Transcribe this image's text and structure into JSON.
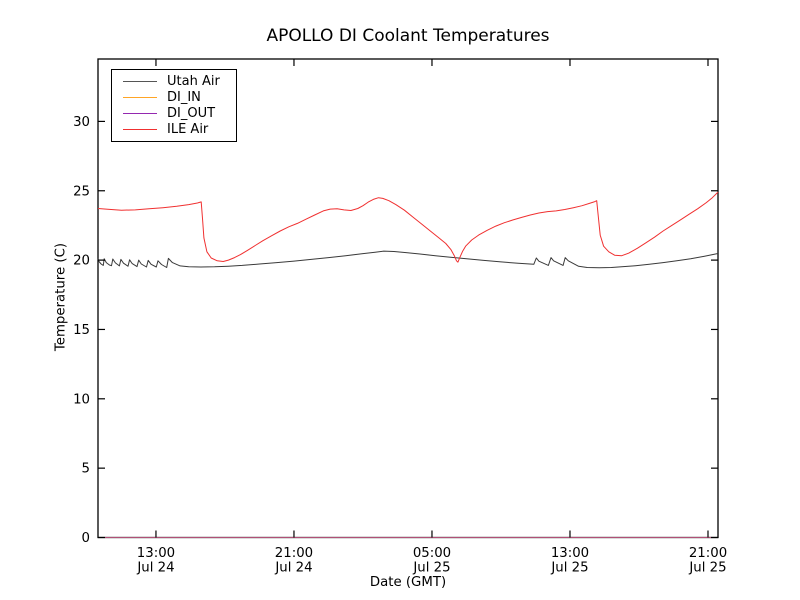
{
  "title": "APOLLO DI Coolant Temperatures",
  "xlabel": "Date (GMT)",
  "ylabel": "Temperature (C)",
  "legend": {
    "items": [
      {
        "label": "Utah Air",
        "color": "#555555"
      },
      {
        "label": "DI_IN",
        "color": "#ffa526"
      },
      {
        "label": "DI_OUT",
        "color": "#9428b0"
      },
      {
        "label": "ILE Air",
        "color": "#f03030"
      }
    ]
  },
  "axes": {
    "y_ticks": [
      0,
      5,
      10,
      15,
      20,
      25,
      30
    ],
    "x_ticks": [
      {
        "hour": 13,
        "time": "13:00",
        "date": "Jul 24"
      },
      {
        "hour": 21,
        "time": "21:00",
        "date": "Jul 24"
      },
      {
        "hour": 29,
        "time": "05:00",
        "date": "Jul 25"
      },
      {
        "hour": 37,
        "time": "13:00",
        "date": "Jul 25"
      },
      {
        "hour": 45,
        "time": "21:00",
        "date": "Jul 25"
      }
    ],
    "ylim": [
      0,
      34.5
    ],
    "xlim_hours": [
      9.64,
      45.58
    ],
    "grid": false,
    "legend_position": "upper left",
    "x_unit": "hours since Jul 24 00:00 GMT"
  },
  "chart_data": {
    "type": "line",
    "title": "APOLLO DI Coolant Temperatures",
    "xlabel": "Date (GMT)",
    "ylabel": "Temperature (C)",
    "series": [
      {
        "name": "Utah Air",
        "color": "#3a3a3a",
        "opacity": 1,
        "points": [
          [
            9.64,
            20.1
          ],
          [
            9.7,
            19.9
          ],
          [
            9.82,
            19.72
          ],
          [
            9.95,
            19.62
          ],
          [
            10.0,
            20.1
          ],
          [
            10.12,
            19.82
          ],
          [
            10.3,
            19.65
          ],
          [
            10.42,
            19.6
          ],
          [
            10.5,
            20.08
          ],
          [
            10.65,
            19.8
          ],
          [
            10.88,
            19.58
          ],
          [
            10.97,
            20.05
          ],
          [
            11.12,
            19.78
          ],
          [
            11.38,
            19.56
          ],
          [
            11.47,
            20.02
          ],
          [
            11.62,
            19.75
          ],
          [
            11.9,
            19.53
          ],
          [
            12.0,
            20.0
          ],
          [
            12.15,
            19.72
          ],
          [
            12.45,
            19.5
          ],
          [
            12.55,
            19.98
          ],
          [
            12.72,
            19.7
          ],
          [
            13.02,
            19.5
          ],
          [
            13.12,
            19.95
          ],
          [
            13.32,
            19.68
          ],
          [
            13.62,
            19.47
          ],
          [
            13.72,
            20.12
          ],
          [
            13.95,
            19.82
          ],
          [
            14.4,
            19.58
          ],
          [
            14.9,
            19.52
          ],
          [
            15.6,
            19.5
          ],
          [
            16.4,
            19.52
          ],
          [
            17.2,
            19.56
          ],
          [
            18.0,
            19.62
          ],
          [
            19.0,
            19.72
          ],
          [
            20.0,
            19.82
          ],
          [
            21.0,
            19.93
          ],
          [
            22.0,
            20.05
          ],
          [
            23.0,
            20.18
          ],
          [
            24.0,
            20.32
          ],
          [
            25.0,
            20.47
          ],
          [
            25.7,
            20.57
          ],
          [
            26.2,
            20.65
          ],
          [
            26.8,
            20.62
          ],
          [
            27.5,
            20.54
          ],
          [
            28.3,
            20.44
          ],
          [
            29.2,
            20.32
          ],
          [
            30.0,
            20.22
          ],
          [
            31.0,
            20.1
          ],
          [
            32.0,
            19.98
          ],
          [
            33.0,
            19.87
          ],
          [
            34.0,
            19.77
          ],
          [
            34.9,
            19.7
          ],
          [
            35.05,
            20.15
          ],
          [
            35.2,
            19.92
          ],
          [
            35.75,
            19.62
          ],
          [
            35.9,
            20.18
          ],
          [
            36.05,
            19.95
          ],
          [
            36.6,
            19.62
          ],
          [
            36.72,
            20.18
          ],
          [
            36.9,
            19.95
          ],
          [
            37.5,
            19.55
          ],
          [
            38.0,
            19.47
          ],
          [
            38.7,
            19.45
          ],
          [
            39.4,
            19.47
          ],
          [
            40.0,
            19.52
          ],
          [
            40.8,
            19.6
          ],
          [
            41.6,
            19.7
          ],
          [
            42.4,
            19.82
          ],
          [
            43.2,
            19.95
          ],
          [
            44.0,
            20.1
          ],
          [
            44.8,
            20.28
          ],
          [
            45.58,
            20.48
          ]
        ]
      },
      {
        "name": "DI_IN",
        "color": "#ffa526",
        "opacity": 0.85,
        "points": [
          [
            9.64,
            0
          ],
          [
            45.58,
            0
          ]
        ]
      },
      {
        "name": "DI_OUT",
        "color": "#9428b0",
        "opacity": 0.6,
        "points": [
          [
            9.64,
            0
          ],
          [
            45.58,
            0
          ]
        ]
      },
      {
        "name": "ILE Air",
        "color": "#f03030",
        "opacity": 1,
        "points": [
          [
            9.64,
            23.72
          ],
          [
            10.2,
            23.66
          ],
          [
            11.0,
            23.6
          ],
          [
            11.8,
            23.62
          ],
          [
            12.6,
            23.7
          ],
          [
            13.4,
            23.78
          ],
          [
            14.2,
            23.88
          ],
          [
            14.9,
            24.0
          ],
          [
            15.4,
            24.12
          ],
          [
            15.62,
            24.2
          ],
          [
            15.7,
            23.0
          ],
          [
            15.78,
            21.6
          ],
          [
            15.95,
            20.6
          ],
          [
            16.2,
            20.15
          ],
          [
            16.55,
            19.95
          ],
          [
            16.9,
            19.9
          ],
          [
            17.2,
            20.0
          ],
          [
            17.55,
            20.18
          ],
          [
            17.9,
            20.4
          ],
          [
            18.3,
            20.7
          ],
          [
            18.75,
            21.05
          ],
          [
            19.2,
            21.4
          ],
          [
            19.7,
            21.75
          ],
          [
            20.2,
            22.1
          ],
          [
            20.7,
            22.4
          ],
          [
            21.2,
            22.65
          ],
          [
            21.7,
            22.95
          ],
          [
            22.2,
            23.25
          ],
          [
            22.7,
            23.55
          ],
          [
            23.1,
            23.68
          ],
          [
            23.5,
            23.7
          ],
          [
            23.9,
            23.62
          ],
          [
            24.3,
            23.58
          ],
          [
            24.7,
            23.72
          ],
          [
            25.0,
            23.92
          ],
          [
            25.3,
            24.18
          ],
          [
            25.6,
            24.38
          ],
          [
            25.9,
            24.5
          ],
          [
            26.15,
            24.45
          ],
          [
            26.5,
            24.28
          ],
          [
            26.9,
            24.0
          ],
          [
            27.4,
            23.6
          ],
          [
            27.9,
            23.1
          ],
          [
            28.4,
            22.6
          ],
          [
            28.9,
            22.1
          ],
          [
            29.4,
            21.6
          ],
          [
            29.8,
            21.2
          ],
          [
            30.1,
            20.75
          ],
          [
            30.3,
            20.3
          ],
          [
            30.42,
            19.95
          ],
          [
            30.5,
            19.85
          ],
          [
            30.62,
            20.2
          ],
          [
            30.78,
            20.65
          ],
          [
            30.95,
            21.0
          ],
          [
            31.3,
            21.45
          ],
          [
            31.7,
            21.8
          ],
          [
            32.2,
            22.15
          ],
          [
            32.7,
            22.45
          ],
          [
            33.2,
            22.7
          ],
          [
            33.7,
            22.9
          ],
          [
            34.2,
            23.08
          ],
          [
            34.7,
            23.25
          ],
          [
            35.2,
            23.4
          ],
          [
            35.7,
            23.5
          ],
          [
            36.2,
            23.55
          ],
          [
            36.7,
            23.65
          ],
          [
            37.2,
            23.78
          ],
          [
            37.7,
            23.92
          ],
          [
            38.1,
            24.08
          ],
          [
            38.4,
            24.2
          ],
          [
            38.55,
            24.28
          ],
          [
            38.65,
            23.0
          ],
          [
            38.75,
            21.8
          ],
          [
            38.95,
            21.0
          ],
          [
            39.25,
            20.6
          ],
          [
            39.6,
            20.35
          ],
          [
            40.0,
            20.32
          ],
          [
            40.4,
            20.5
          ],
          [
            40.9,
            20.85
          ],
          [
            41.4,
            21.25
          ],
          [
            41.9,
            21.65
          ],
          [
            42.4,
            22.1
          ],
          [
            42.9,
            22.5
          ],
          [
            43.4,
            22.9
          ],
          [
            43.9,
            23.3
          ],
          [
            44.4,
            23.7
          ],
          [
            44.9,
            24.15
          ],
          [
            45.25,
            24.5
          ],
          [
            45.58,
            24.9
          ]
        ]
      }
    ]
  }
}
